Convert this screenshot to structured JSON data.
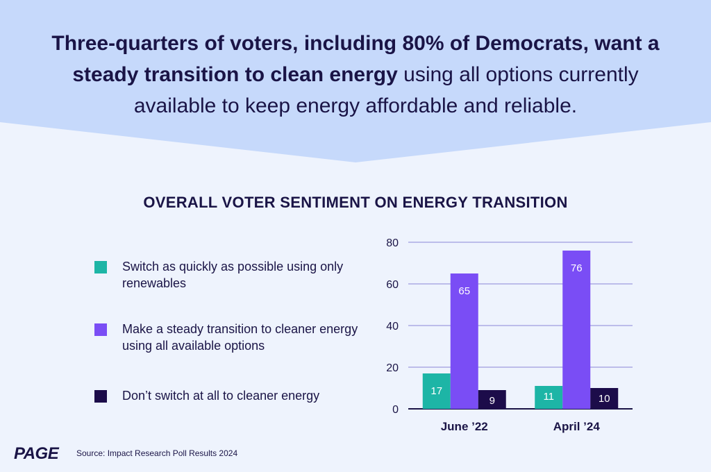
{
  "headline": {
    "bold": "Three-quarters of voters, including 80% of Democrats, want a steady transition to clean energy",
    "regular": " using all options currently available to keep energy affordable and reliable."
  },
  "footer": {
    "logo": "PAGE",
    "source": "Source: Impact Research Poll Results 2024"
  },
  "colors": {
    "banner": "#c6d9fb",
    "background": "#eef3fd",
    "text": "#1a1446",
    "gridline": "#8a86d8"
  },
  "chart_data": {
    "type": "bar",
    "title": "OVERALL VOTER SENTIMENT ON ENERGY TRANSITION",
    "categories": [
      "June ’22",
      "April ’24"
    ],
    "series": [
      {
        "name": "Switch as quickly as possible using only renewables",
        "color": "#1db5a6",
        "values": [
          17,
          11
        ]
      },
      {
        "name": "Make a steady transition to cleaner energy using all available options",
        "color": "#7a4df5",
        "values": [
          65,
          76
        ]
      },
      {
        "name": "Don’t switch at all to cleaner energy",
        "color": "#1c0c4a",
        "values": [
          9,
          10
        ]
      }
    ],
    "ylim": [
      0,
      80
    ],
    "yticks": [
      0,
      20,
      40,
      60,
      80
    ],
    "grid": true,
    "legend_position": "left",
    "data_labels": true
  }
}
